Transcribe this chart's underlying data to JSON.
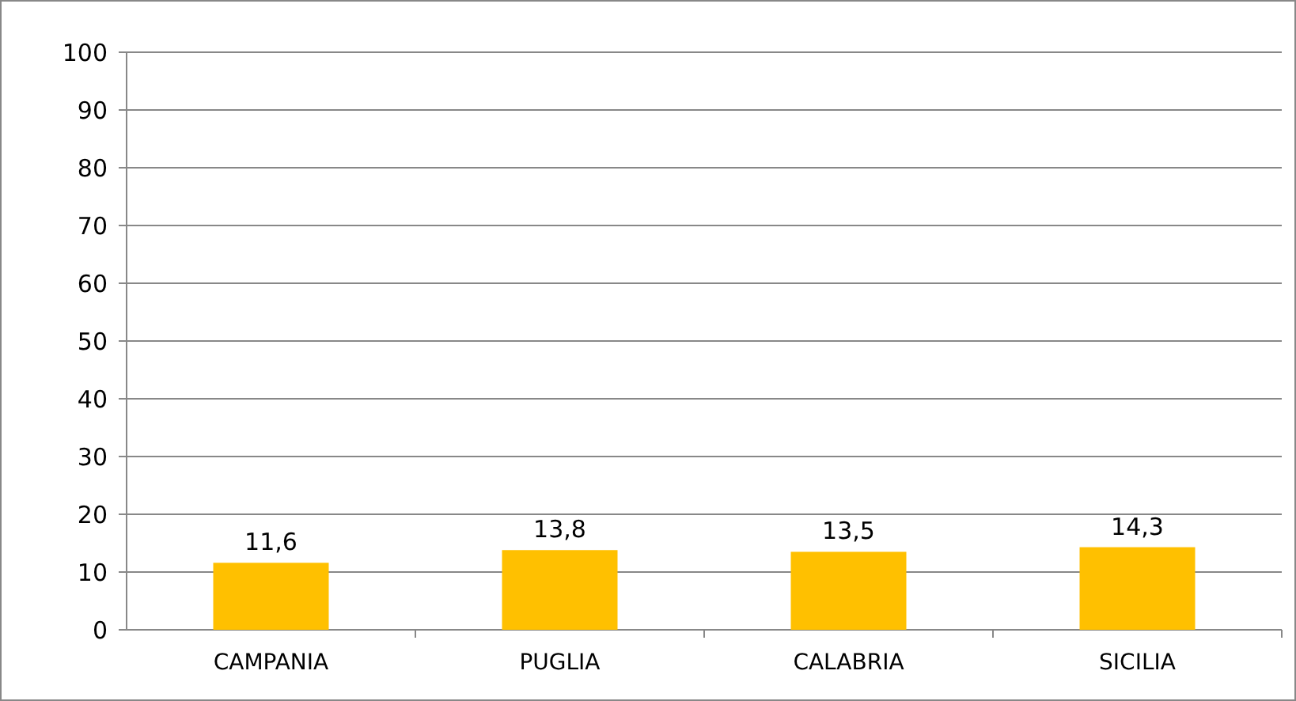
{
  "chart_data": {
    "type": "bar",
    "categories": [
      "CAMPANIA",
      "PUGLIA",
      "CALABRIA",
      "SICILIA"
    ],
    "values": [
      11.6,
      13.8,
      13.5,
      14.3
    ],
    "color": "#ffc000",
    "value_labels": [
      "11,6",
      "13,8",
      "13,5",
      "14,3"
    ],
    "ylim": [
      0,
      100
    ],
    "yticks": [
      0,
      10,
      20,
      30,
      40,
      50,
      60,
      70,
      80,
      90,
      100
    ],
    "grid": "y"
  }
}
